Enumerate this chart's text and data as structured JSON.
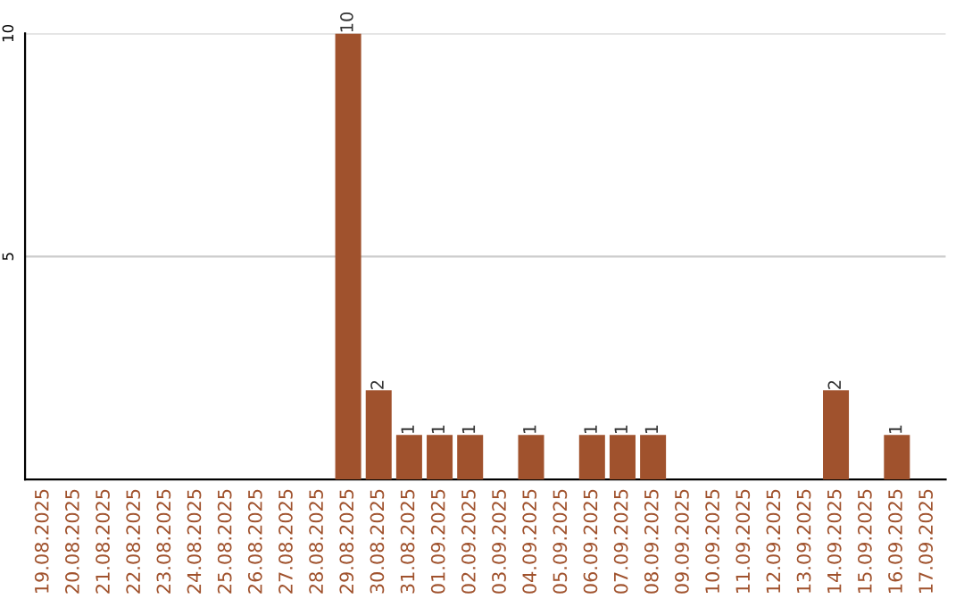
{
  "chart_data": {
    "type": "bar",
    "categories": [
      "19.08.2025",
      "20.08.2025",
      "21.08.2025",
      "22.08.2025",
      "23.08.2025",
      "24.08.2025",
      "25.08.2025",
      "26.08.2025",
      "27.08.2025",
      "28.08.2025",
      "29.08.2025",
      "30.08.2025",
      "31.08.2025",
      "01.09.2025",
      "02.09.2025",
      "03.09.2025",
      "04.09.2025",
      "05.09.2025",
      "06.09.2025",
      "07.09.2025",
      "08.09.2025",
      "09.09.2025",
      "10.09.2025",
      "11.09.2025",
      "12.09.2025",
      "13.09.2025",
      "14.09.2025",
      "15.09.2025",
      "16.09.2025",
      "17.09.2025"
    ],
    "values": [
      0,
      0,
      0,
      0,
      0,
      0,
      0,
      0,
      0,
      0,
      10,
      2,
      1,
      1,
      1,
      0,
      1,
      0,
      1,
      1,
      1,
      0,
      0,
      0,
      0,
      0,
      2,
      0,
      1,
      0
    ],
    "value_labels": [
      null,
      null,
      null,
      null,
      null,
      null,
      null,
      null,
      null,
      null,
      "10",
      "2",
      "1",
      "1",
      "1",
      null,
      "1",
      null,
      "1",
      "1",
      "1",
      null,
      null,
      null,
      null,
      null,
      "2",
      null,
      "1",
      null
    ],
    "color": "#a0522d",
    "ylim": [
      0,
      10
    ],
    "yticks": [
      5,
      10
    ],
    "grid": "y",
    "legend": false
  }
}
